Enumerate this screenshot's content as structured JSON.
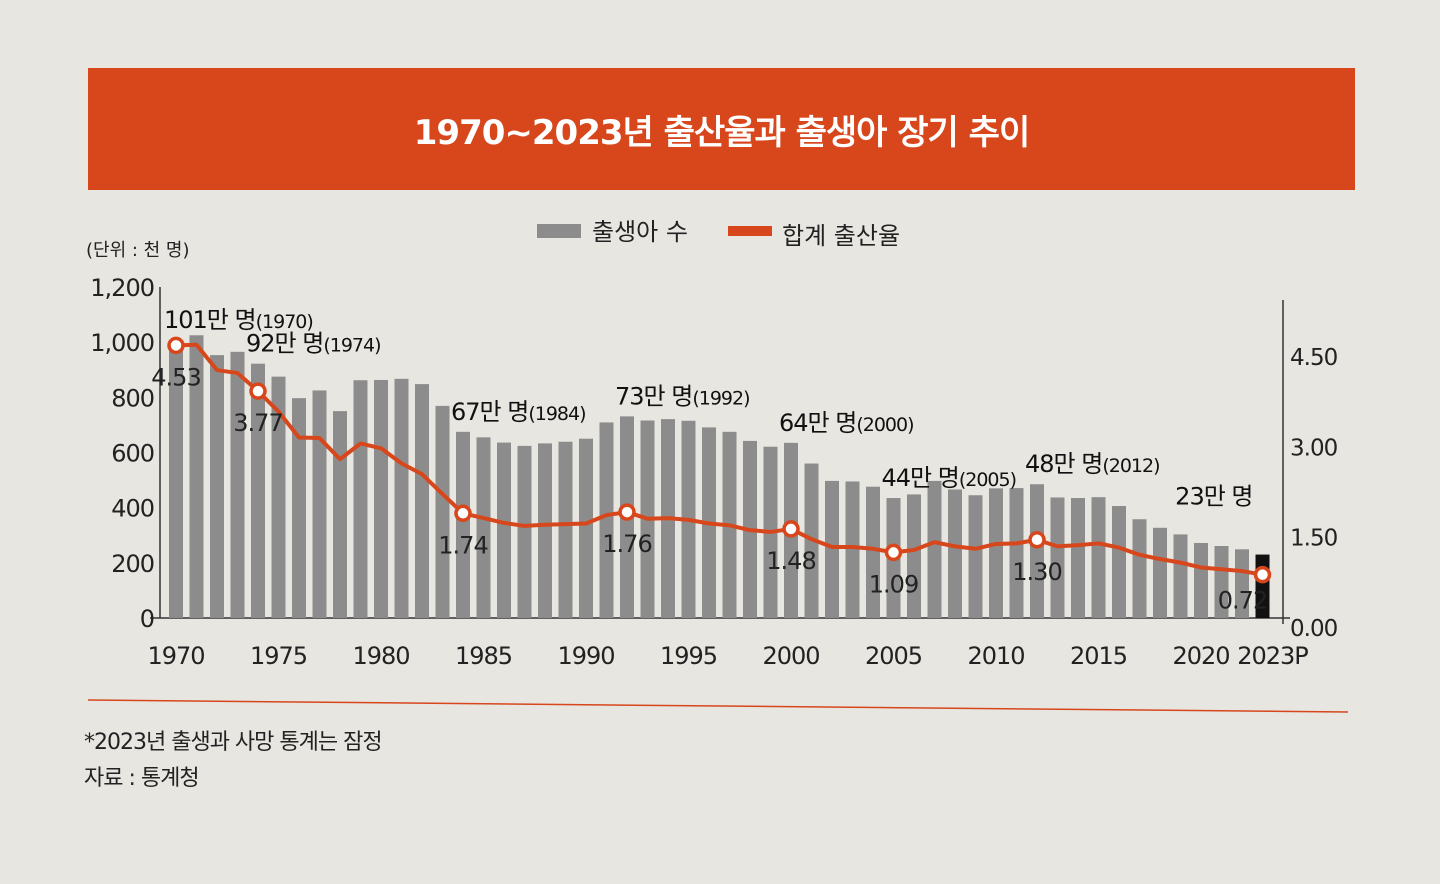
{
  "chart_data": {
    "type": "bar+line",
    "title": "1970~2023년 출산율과 출생아 장기 추이",
    "unit_label": "(단위 : 천 명)",
    "legend": {
      "placement": "top-center"
    },
    "grid": false,
    "x_tick_labels": [
      "1970",
      "1975",
      "1980",
      "1985",
      "1990",
      "1995",
      "2000",
      "2005",
      "2010",
      "2015",
      "2020",
      "2023P"
    ],
    "x_tick_years": [
      1970,
      1975,
      1980,
      1985,
      1990,
      1995,
      2000,
      2005,
      2010,
      2015,
      2020,
      2023
    ],
    "left_axis": {
      "ylim": [
        0,
        1200
      ],
      "ticks": [
        0,
        200,
        400,
        600,
        800,
        1000,
        1200
      ],
      "tick_labels": [
        "0",
        "200",
        "400",
        "600",
        "800",
        "1,000",
        "1,200"
      ]
    },
    "right_axis": {
      "ylim": [
        0,
        5.5
      ],
      "ticks": [
        0,
        1.5,
        3,
        4.5
      ],
      "tick_labels": [
        "0.00",
        "1.50",
        "3.00",
        "4.50"
      ]
    },
    "years": [
      1970,
      1971,
      1972,
      1973,
      1974,
      1975,
      1976,
      1977,
      1978,
      1979,
      1980,
      1981,
      1982,
      1983,
      1984,
      1985,
      1986,
      1987,
      1988,
      1989,
      1990,
      1991,
      1992,
      1993,
      1994,
      1995,
      1996,
      1997,
      1998,
      1999,
      2000,
      2001,
      2002,
      2003,
      2004,
      2005,
      2006,
      2007,
      2008,
      2009,
      2010,
      2011,
      2012,
      2013,
      2014,
      2015,
      2016,
      2017,
      2018,
      2019,
      2020,
      2021,
      2022,
      2023
    ],
    "series": [
      {
        "name": "출생아 수",
        "axis": "left",
        "kind": "bar",
        "color": "#8c8c8c",
        "highlight_color": "#111111",
        "values": [
          1007,
          1025,
          953,
          965,
          922,
          875,
          797,
          825,
          750,
          862,
          863,
          867,
          848,
          769,
          675,
          655,
          636,
          624,
          633,
          639,
          650,
          709,
          731,
          716,
          721,
          715,
          691,
          675,
          642,
          621,
          635,
          560,
          497,
          495,
          476,
          435,
          448,
          497,
          466,
          445,
          470,
          471,
          485,
          437,
          435,
          438,
          406,
          358,
          327,
          303,
          272,
          261,
          249,
          230
        ]
      },
      {
        "name": "합계 출산율",
        "axis": "right",
        "kind": "line",
        "color": "#d8461c",
        "values": [
          4.53,
          4.54,
          4.12,
          4.07,
          3.77,
          3.43,
          3.0,
          2.99,
          2.64,
          2.9,
          2.82,
          2.57,
          2.39,
          2.06,
          1.74,
          1.66,
          1.58,
          1.53,
          1.55,
          1.56,
          1.57,
          1.71,
          1.76,
          1.65,
          1.66,
          1.63,
          1.57,
          1.54,
          1.46,
          1.43,
          1.48,
          1.31,
          1.18,
          1.18,
          1.15,
          1.09,
          1.13,
          1.26,
          1.19,
          1.15,
          1.23,
          1.24,
          1.3,
          1.19,
          1.21,
          1.24,
          1.17,
          1.05,
          0.98,
          0.92,
          0.84,
          0.81,
          0.78,
          0.72
        ]
      }
    ],
    "birth_annotations": [
      {
        "year": 1970,
        "text": "101만 명",
        "year_text": "(1970)"
      },
      {
        "year": 1974,
        "text": "92만 명",
        "year_text": "(1974)"
      },
      {
        "year": 1984,
        "text": "67만 명",
        "year_text": "(1984)"
      },
      {
        "year": 1992,
        "text": "73만 명",
        "year_text": "(1992)"
      },
      {
        "year": 2000,
        "text": "64만 명",
        "year_text": "(2000)"
      },
      {
        "year": 2005,
        "text": "44만 명",
        "year_text": "(2005)"
      },
      {
        "year": 2012,
        "text": "48만 명",
        "year_text": "(2012)"
      },
      {
        "year": 2023,
        "text": "23만 명",
        "year_text": ""
      }
    ],
    "rate_annotations": [
      {
        "year": 1970,
        "text": "4.53"
      },
      {
        "year": 1974,
        "text": "3.77"
      },
      {
        "year": 1984,
        "text": "1.74"
      },
      {
        "year": 1992,
        "text": "1.76"
      },
      {
        "year": 2000,
        "text": "1.48"
      },
      {
        "year": 2005,
        "text": "1.09"
      },
      {
        "year": 2012,
        "text": "1.30"
      },
      {
        "year": 2023,
        "text": "0.72"
      }
    ]
  },
  "footnotes": {
    "note": "*2023년 출생과 사망 통계는 잠정",
    "source": "자료 : 통계청"
  }
}
